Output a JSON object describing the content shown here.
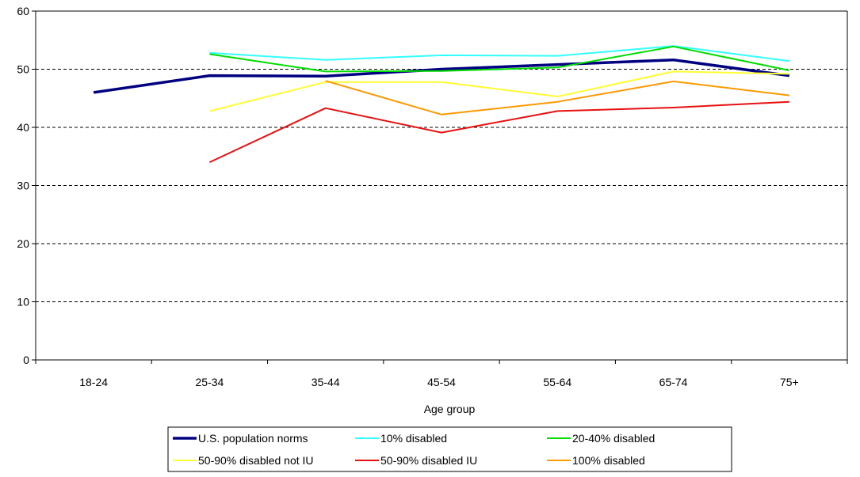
{
  "chart_data": {
    "type": "line",
    "title": "",
    "xlabel": "Age group",
    "ylabel": "",
    "categories": [
      "18-24",
      "25-34",
      "35-44",
      "45-54",
      "55-64",
      "65-74",
      "75+"
    ],
    "ylim": [
      0,
      60
    ],
    "yticks": [
      0,
      10,
      20,
      30,
      40,
      50,
      60
    ],
    "grid": "horizontal dashed",
    "legend_position": "bottom",
    "series": [
      {
        "name": "U.S. population norms",
        "color": "#000080",
        "values": [
          46.0,
          48.9,
          48.8,
          50.0,
          50.8,
          51.6,
          48.9
        ]
      },
      {
        "name": "10% disabled",
        "color": "#33FFFF",
        "values": [
          null,
          52.8,
          51.6,
          52.4,
          52.3,
          54.0,
          51.4
        ]
      },
      {
        "name": "20-40% disabled",
        "color": "#00DD00",
        "values": [
          null,
          52.6,
          49.6,
          49.7,
          50.3,
          53.9,
          49.8
        ]
      },
      {
        "name": "50-90% disabled not IU",
        "color": "#FFFF33",
        "values": [
          null,
          42.8,
          47.8,
          47.8,
          45.3,
          49.6,
          49.2
        ]
      },
      {
        "name": "50-90% disabled IU",
        "color": "#E81010",
        "values": [
          null,
          34.0,
          43.3,
          39.1,
          42.8,
          43.4,
          44.4
        ]
      },
      {
        "name": "100% disabled",
        "color": "#FF9900",
        "values": [
          null,
          null,
          48.0,
          42.2,
          44.4,
          47.9,
          45.5
        ]
      }
    ]
  }
}
